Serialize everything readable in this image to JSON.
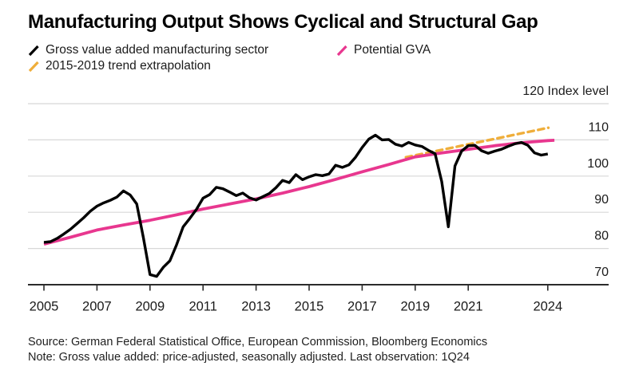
{
  "title": "Manufacturing Output Shows Cyclical and Structural Gap",
  "legend": [
    {
      "label": "Gross value added manufacturing sector",
      "color": "#000000"
    },
    {
      "label": "Potential GVA",
      "color": "#e8378f"
    },
    {
      "label": "2015-2019 trend extrapolation",
      "color": "#efae3b"
    }
  ],
  "source": {
    "source_line": "Source: German Federal Statistical Office, European Commission, Bloomberg Economics",
    "note_line": "Note: Gross value added: price-adjusted, seasonally adjusted. Last observation: 1Q24"
  },
  "colors": {
    "gva": "#000000",
    "potential": "#e8378f",
    "trend": "#efae3b",
    "grid": "#d8d8d8",
    "axis": "#2b2b2b",
    "text": "#1b1b1b"
  },
  "chart_data": {
    "type": "line",
    "title": "Manufacturing Output Shows Cyclical and Structural Gap",
    "y_unit_label": "120 Index level",
    "ylim": [
      70,
      120
    ],
    "xlim": [
      2004.4,
      2024.6
    ],
    "grid": "horizontal",
    "legend_position": "top",
    "y_gridlines": [
      120,
      110,
      100,
      90,
      80
    ],
    "y_ticks": [
      110,
      100,
      90,
      80,
      70
    ],
    "x_ticks": [
      2005,
      2007,
      2009,
      2011,
      2013,
      2015,
      2017,
      2019,
      2021,
      2024
    ],
    "series": [
      {
        "id": "gva",
        "name": "Gross value added manufacturing sector",
        "color": "#000000",
        "style": "solid",
        "x_start": 2005,
        "x_step": 0.25,
        "values": [
          81.7,
          81.9,
          82.8,
          84.0,
          85.3,
          86.9,
          88.5,
          90.3,
          91.7,
          92.6,
          93.3,
          94.2,
          95.9,
          94.8,
          92.3,
          83.0,
          72.8,
          72.3,
          74.8,
          76.6,
          81.0,
          86.0,
          88.3,
          90.8,
          93.9,
          94.9,
          96.9,
          96.5,
          95.6,
          94.6,
          95.3,
          94.0,
          93.4,
          94.3,
          95.2,
          96.8,
          98.8,
          98.2,
          100.4,
          99.0,
          99.8,
          100.4,
          100.1,
          100.6,
          103.0,
          102.4,
          103.1,
          105.2,
          107.9,
          110.2,
          111.3,
          110.0,
          110.1,
          108.8,
          108.3,
          109.3,
          108.6,
          108.2,
          107.1,
          106.2,
          98.5,
          86.0,
          102.8,
          106.9,
          108.4,
          108.5,
          107.0,
          106.3,
          106.9,
          107.4,
          108.2,
          108.9,
          109.3,
          108.5,
          106.4,
          105.8,
          106.1
        ]
      },
      {
        "id": "potential",
        "name": "Potential GVA",
        "color": "#e8378f",
        "style": "solid",
        "x": [
          2005,
          2006,
          2007,
          2008,
          2009,
          2010,
          2011,
          2012,
          2013,
          2014,
          2015,
          2016,
          2017,
          2018,
          2019,
          2020,
          2021,
          2022,
          2023,
          2024,
          2024.25
        ],
        "values": [
          81.2,
          83.1,
          85.1,
          86.5,
          87.8,
          89.3,
          90.9,
          92.3,
          93.7,
          95.3,
          97.1,
          99.1,
          101.2,
          103.2,
          105.3,
          106.4,
          107.4,
          108.4,
          109.2,
          109.8,
          109.9
        ]
      },
      {
        "id": "trend",
        "name": "2015-2019 trend extrapolation",
        "color": "#efae3b",
        "style": "dashed",
        "x": [
          2018.65,
          2024.02
        ],
        "values": [
          105.2,
          113.35
        ]
      }
    ]
  }
}
